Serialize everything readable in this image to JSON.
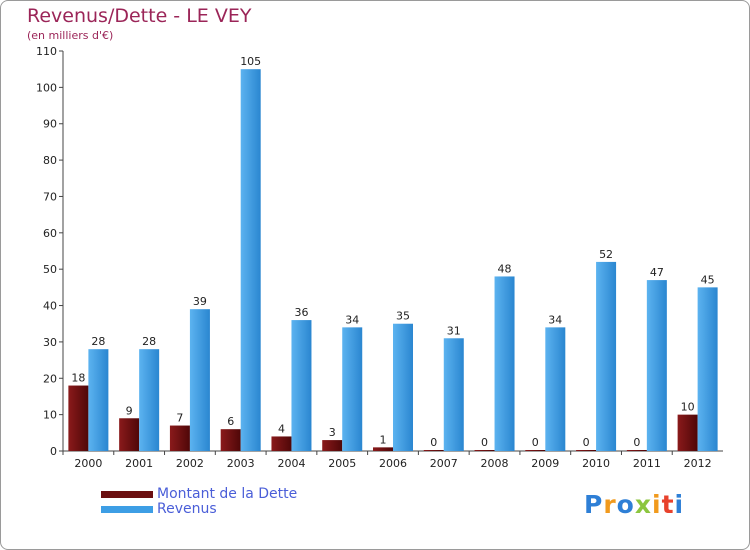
{
  "chart_data": {
    "type": "bar",
    "title": "Revenus/Dette - LE VEY",
    "subtitle": "(en milliers d'€)",
    "categories": [
      "2000",
      "2001",
      "2002",
      "2003",
      "2004",
      "2005",
      "2006",
      "2007",
      "2008",
      "2009",
      "2010",
      "2011",
      "2012"
    ],
    "series": [
      {
        "name": "Montant de la Dette",
        "values": [
          18,
          9,
          7,
          6,
          4,
          3,
          1,
          0,
          0,
          0,
          0,
          0,
          10
        ],
        "color": "#6b0f10"
      },
      {
        "name": "Revenus",
        "values": [
          28,
          28,
          39,
          105,
          36,
          34,
          35,
          31,
          48,
          34,
          52,
          47,
          45
        ],
        "color": "#3d9ee5"
      }
    ],
    "ylim": [
      0,
      110
    ],
    "yticks": [
      0,
      10,
      20,
      30,
      40,
      50,
      60,
      70,
      80,
      90,
      100,
      110
    ],
    "grid": false,
    "legend_position": "bottom-left"
  },
  "brand": {
    "letters": [
      "P",
      "r",
      "o",
      "x",
      "i",
      "t",
      "i"
    ],
    "colors": [
      "#2e7fd6",
      "#f19a1d",
      "#2e7fd6",
      "#8cc63f",
      "#f19a1d",
      "#e8422c",
      "#2e7fd6"
    ]
  }
}
